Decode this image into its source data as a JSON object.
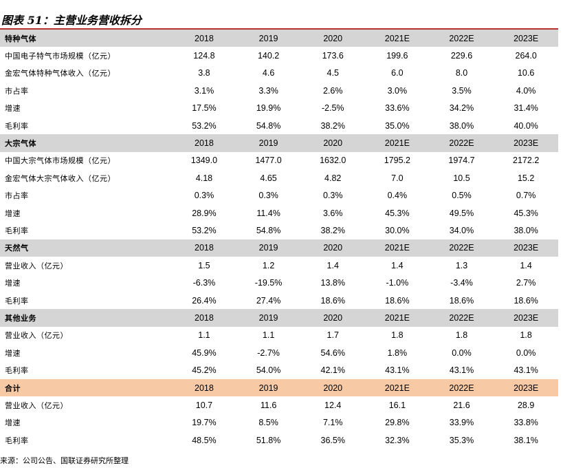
{
  "title": "图表 51：主营业务营收拆分",
  "source": "来源：公司公告、国联证券研究所整理",
  "sections": [
    {
      "header": "特种气体",
      "years": [
        "2018",
        "2019",
        "2020",
        "2021E",
        "2022E",
        "2023E"
      ],
      "rows": [
        {
          "label": "中国电子特气市场规模（亿元）",
          "values": [
            "124.8",
            "140.2",
            "173.6",
            "199.6",
            "229.6",
            "264.0"
          ]
        },
        {
          "label": "金宏气体特种气体收入（亿元）",
          "values": [
            "3.8",
            "4.6",
            "4.5",
            "6.0",
            "8.0",
            "10.6"
          ]
        },
        {
          "label": "市占率",
          "values": [
            "3.1%",
            "3.3%",
            "2.6%",
            "3.0%",
            "3.5%",
            "4.0%"
          ]
        },
        {
          "label": "增速",
          "values": [
            "17.5%",
            "19.9%",
            "-2.5%",
            "33.6%",
            "34.2%",
            "31.4%"
          ]
        },
        {
          "label": "毛利率",
          "values": [
            "53.2%",
            "54.8%",
            "38.2%",
            "35.0%",
            "38.0%",
            "40.0%"
          ]
        }
      ]
    },
    {
      "header": "大宗气体",
      "years": [
        "2018",
        "2019",
        "2020",
        "2021E",
        "2022E",
        "2023E"
      ],
      "rows": [
        {
          "label": "中国大宗气体市场规模（亿元）",
          "values": [
            "1349.0",
            "1477.0",
            "1632.0",
            "1795.2",
            "1974.7",
            "2172.2"
          ]
        },
        {
          "label": "金宏气体大宗气体收入（亿元）",
          "values": [
            "4.18",
            "4.65",
            "4.82",
            "7.0",
            "10.5",
            "15.2"
          ]
        },
        {
          "label": "市占率",
          "values": [
            "0.3%",
            "0.3%",
            "0.3%",
            "0.4%",
            "0.5%",
            "0.7%"
          ]
        },
        {
          "label": "增速",
          "values": [
            "28.9%",
            "11.4%",
            "3.6%",
            "45.3%",
            "49.5%",
            "45.3%"
          ]
        },
        {
          "label": "毛利率",
          "values": [
            "53.2%",
            "54.8%",
            "38.2%",
            "30.0%",
            "34.0%",
            "38.0%"
          ]
        }
      ]
    },
    {
      "header": "天然气",
      "years": [
        "2018",
        "2019",
        "2020",
        "2021E",
        "2022E",
        "2023E"
      ],
      "rows": [
        {
          "label": "营业收入（亿元）",
          "values": [
            "1.5",
            "1.2",
            "1.4",
            "1.4",
            "1.3",
            "1.4"
          ]
        },
        {
          "label": "增速",
          "values": [
            "-6.3%",
            "-19.5%",
            "13.8%",
            "-1.0%",
            "-3.4%",
            "2.7%"
          ]
        },
        {
          "label": "毛利率",
          "values": [
            "26.4%",
            "27.4%",
            "18.6%",
            "18.6%",
            "18.6%",
            "18.6%"
          ]
        }
      ]
    },
    {
      "header": "其他业务",
      "years": [
        "2018",
        "2019",
        "2020",
        "2021E",
        "2022E",
        "2023E"
      ],
      "rows": [
        {
          "label": "营业收入（亿元）",
          "values": [
            "1.1",
            "1.1",
            "1.7",
            "1.8",
            "1.8",
            "1.8"
          ]
        },
        {
          "label": "增速",
          "values": [
            "45.9%",
            "-2.7%",
            "54.6%",
            "1.8%",
            "0.0%",
            "0.0%"
          ]
        },
        {
          "label": "毛利率",
          "values": [
            "45.2%",
            "54.0%",
            "42.1%",
            "43.1%",
            "43.1%",
            "43.1%"
          ]
        }
      ]
    },
    {
      "header": "合计",
      "highlight": true,
      "years": [
        "2018",
        "2019",
        "2020",
        "2021E",
        "2022E",
        "2023E"
      ],
      "rows": [
        {
          "label": "营业收入（亿元）",
          "values": [
            "10.7",
            "11.6",
            "12.4",
            "16.1",
            "21.6",
            "28.9"
          ]
        },
        {
          "label": "增速",
          "values": [
            "19.7%",
            "8.5%",
            "7.1%",
            "29.8%",
            "33.9%",
            "33.8%"
          ]
        },
        {
          "label": "毛利率",
          "values": [
            "48.5%",
            "51.8%",
            "36.5%",
            "32.3%",
            "35.3%",
            "38.1%"
          ]
        }
      ]
    }
  ]
}
